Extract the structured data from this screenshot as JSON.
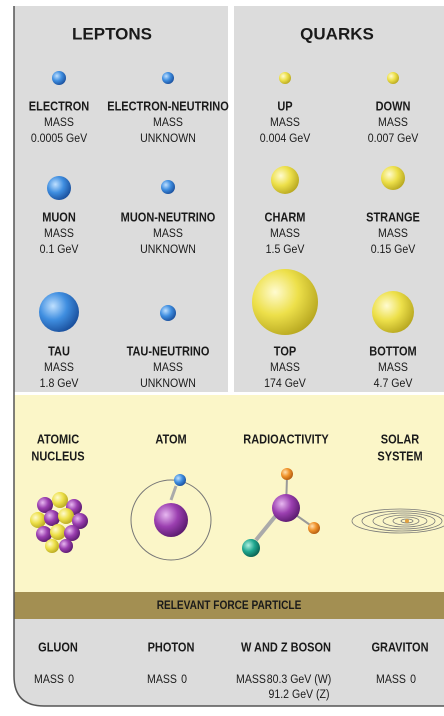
{
  "leptons": {
    "title": "LEPTONS",
    "particles": [
      {
        "name": "ELECTRON",
        "mass_label": "MASS",
        "mass": "0.0005 GeV"
      },
      {
        "name": "ELECTRON-NEUTRINO",
        "mass_label": "MASS",
        "mass": "UNKNOWN"
      },
      {
        "name": "MUON",
        "mass_label": "MASS",
        "mass": "0.1 GeV"
      },
      {
        "name": "MUON-NEUTRINO",
        "mass_label": "MASS",
        "mass": "UNKNOWN"
      },
      {
        "name": "TAU",
        "mass_label": "MASS",
        "mass": "1.8 GeV"
      },
      {
        "name": "TAU-NEUTRINO",
        "mass_label": "MASS",
        "mass": "UNKNOWN"
      }
    ]
  },
  "quarks": {
    "title": "QUARKS",
    "particles": [
      {
        "name": "UP",
        "mass_label": "MASS",
        "mass": "0.004 GeV"
      },
      {
        "name": "DOWN",
        "mass_label": "MASS",
        "mass": "0.007 GeV"
      },
      {
        "name": "CHARM",
        "mass_label": "MASS",
        "mass": "1.5 GeV"
      },
      {
        "name": "STRANGE",
        "mass_label": "MASS",
        "mass": "0.15 GeV"
      },
      {
        "name": "TOP",
        "mass_label": "MASS",
        "mass": "174 GeV"
      },
      {
        "name": "BOTTOM",
        "mass_label": "MASS",
        "mass": "4.7 GeV"
      }
    ]
  },
  "structures": [
    {
      "lines": [
        "ATOMIC",
        "NUCLEUS"
      ]
    },
    {
      "lines": [
        "ATOM"
      ]
    },
    {
      "lines": [
        "RADIOACTIVITY"
      ]
    },
    {
      "lines": [
        "SOLAR",
        "SYSTEM"
      ]
    }
  ],
  "force_header": "RELEVANT FORCE PARTICLE",
  "forces": [
    {
      "name": "GLUON",
      "mass_label": "MASS",
      "mass": [
        "0"
      ]
    },
    {
      "name": "PHOTON",
      "mass_label": "MASS",
      "mass": [
        "0"
      ]
    },
    {
      "name": "W AND Z BOSON",
      "mass_label": "MASS",
      "mass": [
        "80.3 GeV (W)",
        "91.2 GeV (Z)"
      ]
    },
    {
      "name": "GRAVITON",
      "mass_label": "MASS",
      "mass": [
        "0"
      ]
    }
  ]
}
